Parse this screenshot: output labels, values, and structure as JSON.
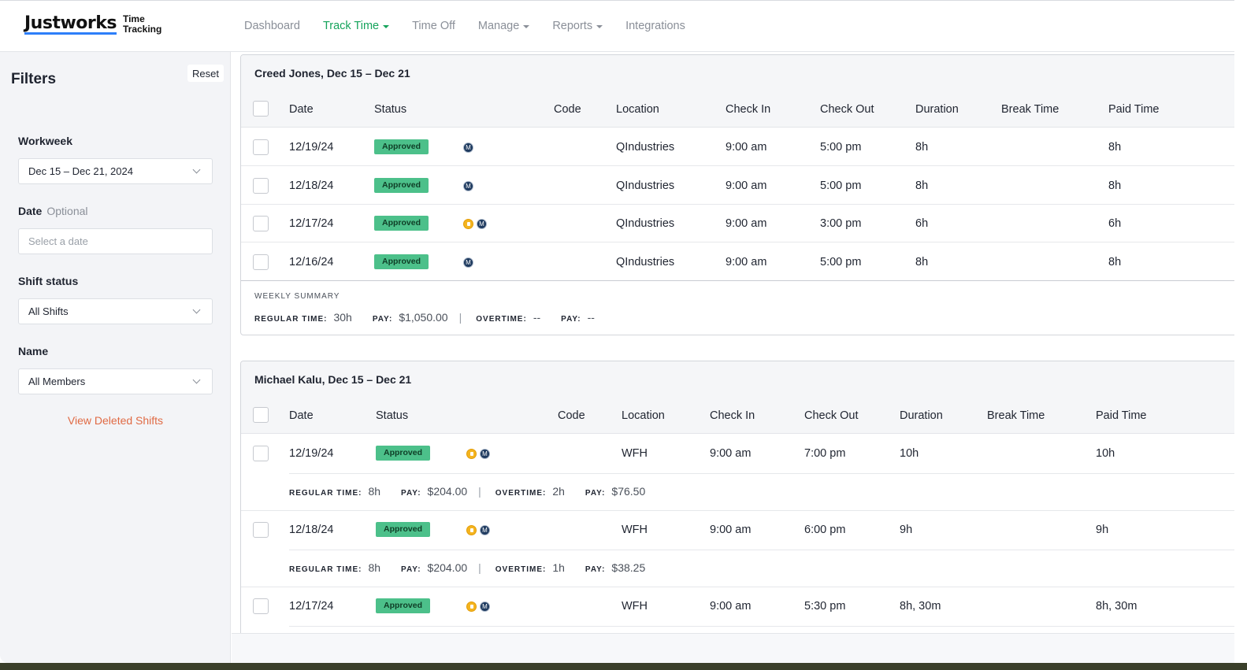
{
  "brand": {
    "name": "Justworks",
    "product_line1": "Time",
    "product_line2": "Tracking"
  },
  "nav": [
    {
      "label": "Dashboard",
      "active": false,
      "dropdown": false
    },
    {
      "label": "Track Time",
      "active": true,
      "dropdown": true
    },
    {
      "label": "Time Off",
      "active": false,
      "dropdown": false
    },
    {
      "label": "Manage",
      "active": false,
      "dropdown": true
    },
    {
      "label": "Reports",
      "active": false,
      "dropdown": true
    },
    {
      "label": "Integrations",
      "active": false,
      "dropdown": false
    }
  ],
  "filters": {
    "title": "Filters",
    "reset_label": "Reset",
    "workweek_label": "Workweek",
    "workweek_value": "Dec 15 – Dec 21, 2024",
    "date_label": "Date",
    "date_optional": "Optional",
    "date_placeholder": "Select a date",
    "shift_status_label": "Shift status",
    "shift_status_value": "All Shifts",
    "name_label": "Name",
    "name_value": "All Members",
    "deleted_link": "View Deleted Shifts"
  },
  "columns": [
    "Date",
    "Status",
    "Code",
    "Location",
    "Check In",
    "Check Out",
    "Duration",
    "Break Time",
    "Paid Time"
  ],
  "colors": {
    "accent_green": "#15a35b",
    "badge_green": "#4cc08a",
    "link_orange": "#e06a44",
    "marker_navy": "#1e3a5f",
    "flag_yellow": "#f4b41f"
  },
  "summary_labels": {
    "weekly": "WEEKLY SUMMARY",
    "regular": "REGULAR TIME:",
    "pay": "PAY:",
    "overtime": "OVERTIME:",
    "sep": "|"
  },
  "cards": [
    {
      "title": "Creed Jones, Dec 15 – Dec 21",
      "rows": [
        {
          "date": "12/19/24",
          "status": "Approved",
          "flags": [
            "M"
          ],
          "location": "QIndustries",
          "check_in": "9:00 am",
          "check_out": "5:00 pm",
          "duration": "8h",
          "paid": "8h"
        },
        {
          "date": "12/18/24",
          "status": "Approved",
          "flags": [
            "M"
          ],
          "location": "QIndustries",
          "check_in": "9:00 am",
          "check_out": "5:00 pm",
          "duration": "8h",
          "paid": "8h"
        },
        {
          "date": "12/17/24",
          "status": "Approved",
          "flags": [
            "flag",
            "M"
          ],
          "location": "QIndustries",
          "check_in": "9:00 am",
          "check_out": "3:00 pm",
          "duration": "6h",
          "paid": "6h"
        },
        {
          "date": "12/16/24",
          "status": "Approved",
          "flags": [
            "M"
          ],
          "location": "QIndustries",
          "check_in": "9:00 am",
          "check_out": "5:00 pm",
          "duration": "8h",
          "paid": "8h"
        }
      ],
      "summary": {
        "regular": "30h",
        "pay": "$1,050.00",
        "overtime": "--",
        "ot_pay": "--"
      }
    },
    {
      "title": "Michael Kalu, Dec 15 – Dec 21",
      "rows": [
        {
          "date": "12/19/24",
          "status": "Approved",
          "flags": [
            "flag",
            "M"
          ],
          "location": "WFH",
          "check_in": "9:00 am",
          "check_out": "7:00 pm",
          "duration": "10h",
          "paid": "10h",
          "breakdown": {
            "regular": "8h",
            "pay": "$204.00",
            "overtime": "2h",
            "ot_pay": "$76.50"
          }
        },
        {
          "date": "12/18/24",
          "status": "Approved",
          "flags": [
            "flag",
            "M"
          ],
          "location": "WFH",
          "check_in": "9:00 am",
          "check_out": "6:00 pm",
          "duration": "9h",
          "paid": "9h",
          "breakdown": {
            "regular": "8h",
            "pay": "$204.00",
            "overtime": "1h",
            "ot_pay": "$38.25"
          }
        },
        {
          "date": "12/17/24",
          "status": "Approved",
          "flags": [
            "flag",
            "M"
          ],
          "location": "WFH",
          "check_in": "9:00 am",
          "check_out": "5:30 pm",
          "duration": "8h, 30m",
          "paid": "8h, 30m"
        }
      ]
    }
  ]
}
